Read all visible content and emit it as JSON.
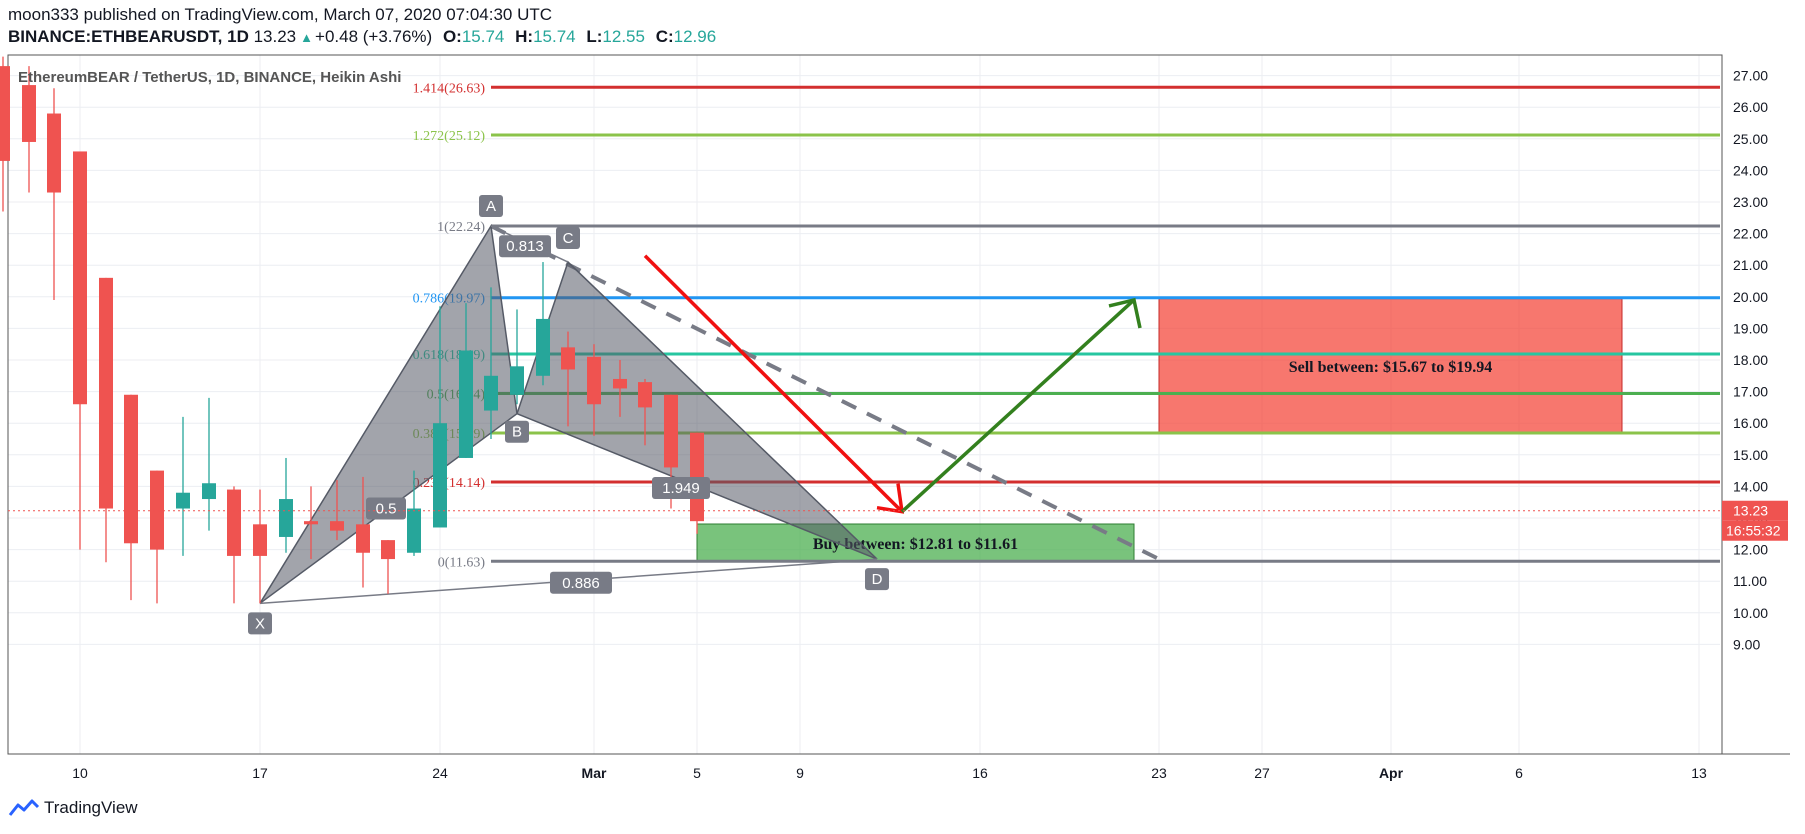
{
  "header": {
    "publisher_line": "moon333 published on TradingView.com, March 07, 2020 07:04:30 UTC",
    "symbol": "BINANCE:ETHBEARUSDT, 1D",
    "last": "13.23",
    "change": "+0.48 (+3.76%)",
    "o_label": "O:",
    "o_value": "15.74",
    "h_label": "H:",
    "h_value": "15.74",
    "l_label": "L:",
    "l_value": "12.55",
    "c_label": "C:",
    "c_value": "12.96"
  },
  "footer": {
    "brand": "TradingView"
  },
  "colors": {
    "up": "#26a69a",
    "down": "#ef5350",
    "fib_1414": "#d32f2f",
    "fib_1272": "#8bc34a",
    "fib_1": "#787b86",
    "fib_0786": "#2196f3",
    "fib_0618": "#26c6a0",
    "fib_05": "#4caf50",
    "fib_0382": "#8bc34a",
    "fib_0236": "#d32f2f",
    "fib_0": "#787b86"
  },
  "chart_data": {
    "type": "candlestick",
    "title": "EthereumBEAR / TetherUS, 1D, BINANCE, Heikin Ashi",
    "x_ticks": [
      "10",
      "17",
      "24",
      "Mar",
      "5",
      "9",
      "16",
      "23",
      "27",
      "Apr",
      "6",
      "13"
    ],
    "y_ticks": [
      "27.00",
      "26.00",
      "25.00",
      "24.00",
      "23.00",
      "22.00",
      "21.00",
      "20.00",
      "19.00",
      "18.00",
      "17.00",
      "16.00",
      "15.00",
      "14.00",
      "13.00",
      "12.00",
      "11.00",
      "10.00",
      "9.00"
    ],
    "ylim": [
      8.8,
      27.6
    ],
    "last_price": "13.23",
    "countdown": "16:55:32",
    "candles": [
      {
        "date": "2020-02-06",
        "o": 27.5,
        "h": 27.6,
        "l": 23.5,
        "c": 25.8
      },
      {
        "date": "2020-02-07",
        "o": 27.3,
        "h": 27.6,
        "l": 22.7,
        "c": 24.3
      },
      {
        "date": "2020-02-08",
        "o": 26.7,
        "h": 27.3,
        "l": 23.3,
        "c": 24.9
      },
      {
        "date": "2020-02-09",
        "o": 25.8,
        "h": 26.6,
        "l": 19.9,
        "c": 23.3
      },
      {
        "date": "2020-02-10",
        "o": 24.6,
        "h": 24.6,
        "l": 12.0,
        "c": 16.6
      },
      {
        "date": "2020-02-11",
        "o": 20.6,
        "h": 20.6,
        "l": 11.6,
        "c": 13.3
      },
      {
        "date": "2020-02-12",
        "o": 16.9,
        "h": 16.9,
        "l": 10.4,
        "c": 12.2
      },
      {
        "date": "2020-02-13",
        "o": 14.5,
        "h": 14.5,
        "l": 10.3,
        "c": 12.0
      },
      {
        "date": "2020-02-14",
        "o": 13.3,
        "h": 16.2,
        "l": 11.8,
        "c": 13.8
      },
      {
        "date": "2020-02-15",
        "o": 13.6,
        "h": 16.8,
        "l": 12.6,
        "c": 14.1
      },
      {
        "date": "2020-02-16",
        "o": 13.9,
        "h": 14.0,
        "l": 10.3,
        "c": 11.8
      },
      {
        "date": "2020-02-17",
        "o": 12.8,
        "h": 13.9,
        "l": 10.3,
        "c": 11.8
      },
      {
        "date": "2020-02-18",
        "o": 12.4,
        "h": 14.9,
        "l": 11.9,
        "c": 13.6
      },
      {
        "date": "2020-02-19",
        "o": 12.9,
        "h": 14.0,
        "l": 11.7,
        "c": 12.8
      },
      {
        "date": "2020-02-20",
        "o": 12.9,
        "h": 14.2,
        "l": 12.3,
        "c": 12.6
      },
      {
        "date": "2020-02-21",
        "o": 12.8,
        "h": 14.3,
        "l": 10.8,
        "c": 11.9
      },
      {
        "date": "2020-02-22",
        "o": 12.3,
        "h": 12.3,
        "l": 10.6,
        "c": 11.7
      },
      {
        "date": "2020-02-23",
        "o": 11.9,
        "h": 14.5,
        "l": 11.8,
        "c": 13.3
      },
      {
        "date": "2020-02-24",
        "o": 12.7,
        "h": 19.7,
        "l": 12.7,
        "c": 16.0
      },
      {
        "date": "2020-02-25",
        "o": 14.9,
        "h": 19.8,
        "l": 14.9,
        "c": 18.3
      },
      {
        "date": "2020-02-26",
        "o": 16.4,
        "h": 20.3,
        "l": 15.5,
        "c": 17.5
      },
      {
        "date": "2020-02-27",
        "o": 16.9,
        "h": 19.6,
        "l": 16.6,
        "c": 17.8
      },
      {
        "date": "2020-02-28",
        "o": 17.5,
        "h": 21.1,
        "l": 17.2,
        "c": 19.3
      },
      {
        "date": "2020-02-29",
        "o": 18.4,
        "h": 18.9,
        "l": 15.9,
        "c": 17.7
      },
      {
        "date": "2020-03-01",
        "o": 18.1,
        "h": 18.5,
        "l": 15.6,
        "c": 16.6
      },
      {
        "date": "2020-03-02",
        "o": 17.4,
        "h": 18.0,
        "l": 16.2,
        "c": 17.1
      },
      {
        "date": "2020-03-03",
        "o": 17.3,
        "h": 17.4,
        "l": 15.3,
        "c": 16.5
      },
      {
        "date": "2020-03-04",
        "o": 16.9,
        "h": 16.9,
        "l": 13.3,
        "c": 14.6
      },
      {
        "date": "2020-03-05",
        "o": 15.7,
        "h": 15.7,
        "l": 12.5,
        "c": 12.9
      }
    ],
    "fib_levels": [
      {
        "label": "1.414(26.63)",
        "value": 26.63,
        "color": "fib_1414"
      },
      {
        "label": "1.272(25.12)",
        "value": 25.12,
        "color": "fib_1272"
      },
      {
        "label": "1(22.24)",
        "value": 22.24,
        "color": "fib_1"
      },
      {
        "label": "0.786(19.97)",
        "value": 19.97,
        "color": "fib_0786"
      },
      {
        "label": "0.618(18.19)",
        "value": 18.19,
        "color": "fib_0618"
      },
      {
        "label": "0.5(16.94)",
        "value": 16.94,
        "color": "fib_05"
      },
      {
        "label": "0.382(15.69)",
        "value": 15.69,
        "color": "fib_0382"
      },
      {
        "label": "0.236(14.14)",
        "value": 14.14,
        "color": "fib_0236"
      },
      {
        "label": "0(11.63)",
        "value": 11.63,
        "color": "fib_0"
      }
    ],
    "pattern_points": [
      {
        "label": "X",
        "date": "2020-02-17",
        "value": 10.3
      },
      {
        "label": "A",
        "date": "2020-02-26",
        "value": 22.24
      },
      {
        "label": "B",
        "date": "2020-02-27",
        "value": 16.3
      },
      {
        "label": "C",
        "date": "2020-02-29",
        "value": 21.1
      },
      {
        "label": "D",
        "date": "2020-03-12",
        "value": 11.7
      }
    ],
    "ratios": [
      "0.813",
      "0.5",
      "1.949",
      "0.886"
    ],
    "zones": [
      {
        "text": "Sell between: $15.67 to $19.94",
        "y_from": 15.67,
        "y_to": 19.94,
        "x_from": "2020-03-23",
        "x_to": "2020-04-10",
        "color": "#f44336"
      },
      {
        "text": "Buy between: $12.81 to $11.61",
        "y_from": 11.61,
        "y_to": 12.81,
        "x_from": "2020-03-05",
        "x_to": "2020-03-22",
        "color": "#4caf50"
      }
    ]
  }
}
